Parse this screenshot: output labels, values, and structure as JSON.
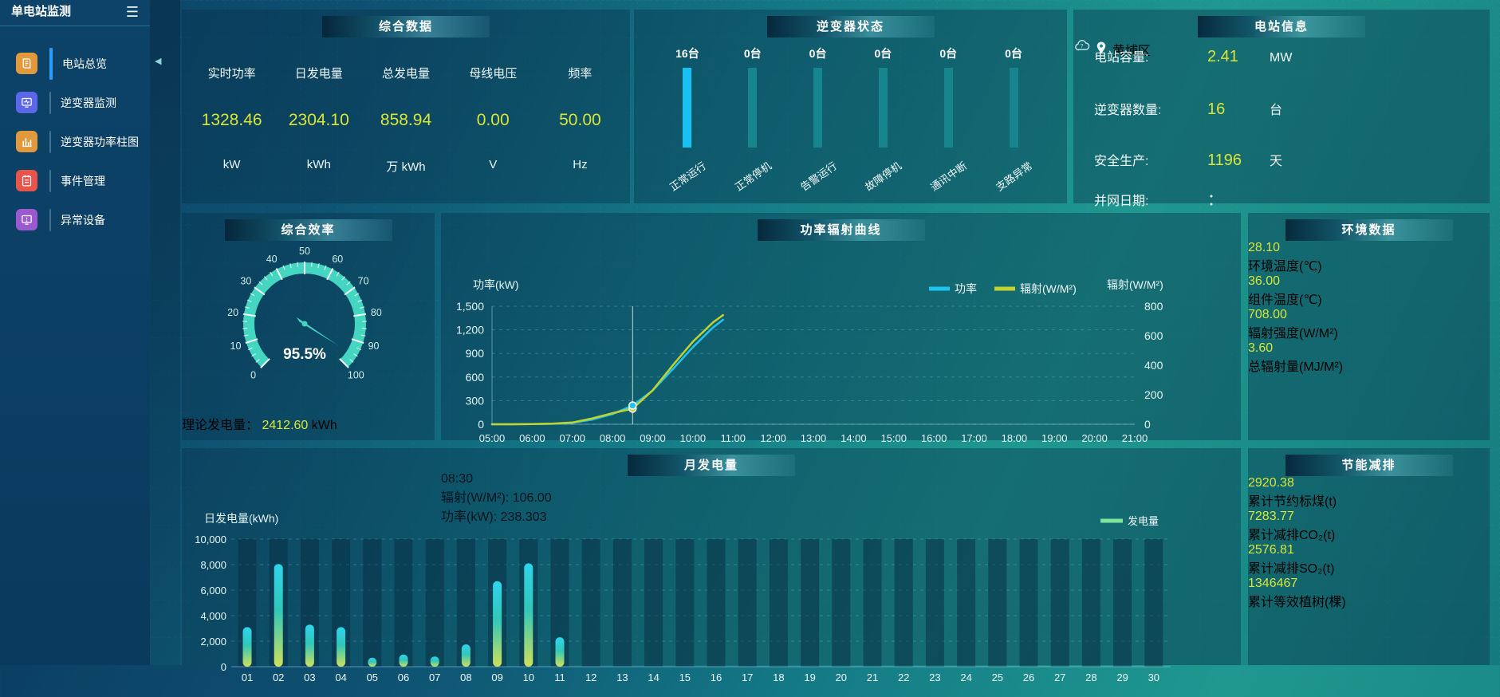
{
  "app": {
    "title": "单电站监测"
  },
  "colors": {
    "value_yellow": "#d9e636",
    "inverter_bar_active": "#19c0f2",
    "inverter_bar_idle": "#17858d",
    "power_line": "#22c3ee",
    "radiation_line": "#c3d32b",
    "gauge": "#45d6c2",
    "generation_legend": "#7ce6a0",
    "active_menu_indicator": "#2e9bff"
  },
  "sidebar": {
    "items": [
      {
        "label": "电站总览",
        "icon": "overview-icon",
        "color": "#e09a3c",
        "active": true
      },
      {
        "label": "逆变器监测",
        "icon": "inverter-monitor-icon",
        "color": "#5b67e8",
        "active": false
      },
      {
        "label": "逆变器功率柱图",
        "icon": "power-bars-icon",
        "color": "#e09a3c",
        "active": false
      },
      {
        "label": "事件管理",
        "icon": "event-manage-icon",
        "color": "#e8534a",
        "active": false
      },
      {
        "label": "异常设备",
        "icon": "abnormal-device-icon",
        "color": "#9b59d0",
        "active": false
      }
    ]
  },
  "summary": {
    "title": "综合数据",
    "metrics": [
      {
        "label": "实时功率",
        "value": "1328.46",
        "unit": "kW"
      },
      {
        "label": "日发电量",
        "value": "2304.10",
        "unit": "kWh"
      },
      {
        "label": "总发电量",
        "value": "858.94",
        "unit": "万 kWh"
      },
      {
        "label": "母线电压",
        "value": "0.00",
        "unit": "V"
      },
      {
        "label": "频率",
        "value": "50.00",
        "unit": "Hz"
      }
    ]
  },
  "inverter_status": {
    "title": "逆变器状态",
    "items": [
      {
        "count": "16台",
        "label": "正常运行",
        "highlight": true
      },
      {
        "count": "0台",
        "label": "正常停机",
        "highlight": false
      },
      {
        "count": "0台",
        "label": "告警运行",
        "highlight": false
      },
      {
        "count": "0台",
        "label": "故障停机",
        "highlight": false
      },
      {
        "count": "0台",
        "label": "通讯中断",
        "highlight": false
      },
      {
        "count": "0台",
        "label": "支路异常",
        "highlight": false
      }
    ]
  },
  "station_info": {
    "title": "电站信息",
    "rows": [
      {
        "label": "电站容量:",
        "value": "2.41",
        "unit": "MW",
        "muted": false
      },
      {
        "label": "逆变器数量:",
        "value": "16",
        "unit": "台",
        "muted": false
      },
      {
        "label": "安全生产:",
        "value": "1196",
        "unit": "天",
        "muted": false
      },
      {
        "label": "并网日期:",
        "value": "：",
        "unit": "",
        "muted": true
      }
    ],
    "weather_icon": "cloud-icon",
    "location_icon": "pin-icon",
    "location": "黄埔区"
  },
  "efficiency": {
    "title": "综合效率",
    "display": "95.5%",
    "theory_label": "理论发电量：",
    "theory_value": "2412.60",
    "theory_unit": "kWh"
  },
  "power_chart": {
    "title": "功率辐射曲线",
    "tooltip": {
      "time": "08:30",
      "items": [
        {
          "color": "#c3d32b",
          "text": "辐射(W/M²): 106.00"
        },
        {
          "color": "#22c3ee",
          "text": "功率(kW): 238.303"
        }
      ]
    }
  },
  "month_chart": {
    "title": "月发电量"
  },
  "environment": {
    "title": "环境数据",
    "cells": [
      {
        "value": "28.10",
        "label": "环境温度(℃)"
      },
      {
        "value": "36.00",
        "label": "组件温度(℃)"
      },
      {
        "value": "708.00",
        "label": "辐射强度(W/M²)"
      },
      {
        "value": "3.60",
        "label": "总辐射量(MJ/M²)"
      }
    ]
  },
  "saving": {
    "title": "节能减排",
    "cells": [
      {
        "value": "2920.38",
        "label": "累计节约标煤(t)"
      },
      {
        "value": "7283.77",
        "label": "累计减排CO₂(t)"
      },
      {
        "value": "2576.81",
        "label": "累计减排SO₂(t)"
      },
      {
        "value": "1346467",
        "label": "累计等效植树(棵)"
      }
    ]
  },
  "chart_data": [
    {
      "type": "line",
      "title": "功率辐射曲线",
      "x": [
        "05:00",
        "05:30",
        "06:00",
        "06:30",
        "07:00",
        "07:30",
        "08:00",
        "08:30",
        "09:00",
        "09:30",
        "10:00",
        "10:30",
        "10:45"
      ],
      "x_axis_labels": [
        "05:00",
        "06:00",
        "07:00",
        "08:00",
        "09:00",
        "10:00",
        "11:00",
        "12:00",
        "13:00",
        "14:00",
        "15:00",
        "16:00",
        "17:00",
        "18:00",
        "19:00",
        "20:00",
        "21:00"
      ],
      "series": [
        {
          "name": "功率",
          "axis": "left",
          "color": "#22c3ee",
          "values": [
            0,
            0,
            2,
            6,
            18,
            60,
            130,
            238.3,
            430,
            700,
            980,
            1230,
            1328
          ]
        },
        {
          "name": "辐射(W/M²)",
          "axis": "right",
          "color": "#c3d32b",
          "values": [
            0,
            0,
            1,
            4,
            12,
            40,
            75,
            106,
            230,
            400,
            560,
            690,
            740
          ]
        }
      ],
      "left_axis": {
        "label": "功率(kW)",
        "min": 0,
        "max": 1500,
        "ticks": [
          "1,500",
          "1,200",
          "900",
          "600",
          "300",
          "0"
        ]
      },
      "right_axis": {
        "label": "辐射(W/M²)",
        "min": 0,
        "max": 800,
        "ticks": [
          "800",
          "600",
          "400",
          "200",
          "0"
        ]
      },
      "hover_x": "08:30",
      "legend": [
        {
          "name": "功率",
          "color": "#22c3ee"
        },
        {
          "name": "辐射(W/M²)",
          "color": "#c3d32b"
        }
      ],
      "grid": "dashed-horizontal",
      "legend_position": "top-right"
    },
    {
      "type": "bar",
      "title": "月发电量",
      "axis_label": "日发电量(kWh)",
      "legend": "发电量",
      "categories": [
        "01",
        "02",
        "03",
        "04",
        "05",
        "06",
        "07",
        "08",
        "09",
        "10",
        "11",
        "12",
        "13",
        "14",
        "15",
        "16",
        "17",
        "18",
        "19",
        "20",
        "21",
        "22",
        "23",
        "24",
        "25",
        "26",
        "27",
        "28",
        "29",
        "30"
      ],
      "values": [
        3100,
        8050,
        3300,
        3100,
        700,
        950,
        800,
        1750,
        6700,
        8100,
        2304.1,
        0,
        0,
        0,
        0,
        0,
        0,
        0,
        0,
        0,
        0,
        0,
        0,
        0,
        0,
        0,
        0,
        0,
        0,
        0
      ],
      "ylim": [
        0,
        10000
      ],
      "yticks": [
        "10,000",
        "8,000",
        "6,000",
        "4,000",
        "2,000",
        "0"
      ],
      "bar_gradient": [
        "#2fd5ec",
        "#31c7b9",
        "#cfe05a"
      ],
      "background_bars": true
    },
    {
      "type": "gauge",
      "title": "综合效率",
      "value": 95.5,
      "min": 0,
      "max": 100,
      "tick_labels": [
        "0",
        "10",
        "20",
        "30",
        "40",
        "50",
        "60",
        "70",
        "80",
        "90",
        "100"
      ]
    }
  ]
}
